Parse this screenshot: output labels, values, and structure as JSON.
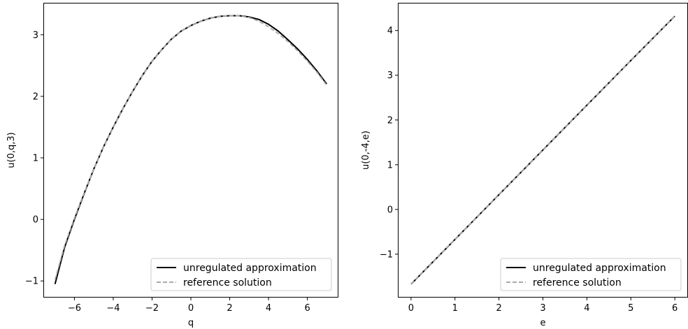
{
  "chart_data": [
    {
      "type": "line",
      "xlabel": "q",
      "ylabel": "u(0,q,3)",
      "xlim": [
        -7.6,
        7.6
      ],
      "ylim": [
        -1.27,
        3.52
      ],
      "xticks": [
        -6,
        -4,
        -2,
        0,
        2,
        4,
        6
      ],
      "yticks": [
        -1,
        0,
        1,
        2,
        3
      ],
      "legend_position": "lower-right",
      "series": [
        {
          "name": "unregulated approximation",
          "style": "solid",
          "color": "#000000",
          "x": [
            -7,
            -6.5,
            -6,
            -5.5,
            -5,
            -4.5,
            -4,
            -3.5,
            -3,
            -2.5,
            -2,
            -1.5,
            -1,
            -0.5,
            0,
            0.5,
            1,
            1.5,
            2,
            2.5,
            3,
            3.5,
            4,
            4.5,
            5,
            5.5,
            6,
            6.5,
            7
          ],
          "y": [
            -1.05,
            -0.45,
            0.0,
            0.42,
            0.82,
            1.18,
            1.5,
            1.8,
            2.08,
            2.34,
            2.57,
            2.76,
            2.93,
            3.06,
            3.15,
            3.22,
            3.27,
            3.3,
            3.31,
            3.31,
            3.29,
            3.25,
            3.17,
            3.06,
            2.92,
            2.77,
            2.6,
            2.41,
            2.2
          ]
        },
        {
          "name": "reference solution",
          "style": "dashed",
          "color": "#aaaaaa",
          "x": [
            -7,
            -6.5,
            -6,
            -5.5,
            -5,
            -4.5,
            -4,
            -3.5,
            -3,
            -2.5,
            -2,
            -1.5,
            -1,
            -0.5,
            0,
            0.5,
            1,
            1.5,
            2,
            2.5,
            3,
            3.5,
            4,
            4.5,
            5,
            5.5,
            6,
            6.5,
            7
          ],
          "y": [
            -0.98,
            -0.42,
            0.02,
            0.43,
            0.82,
            1.18,
            1.5,
            1.8,
            2.08,
            2.34,
            2.57,
            2.76,
            2.93,
            3.06,
            3.15,
            3.22,
            3.27,
            3.3,
            3.31,
            3.31,
            3.28,
            3.22,
            3.13,
            3.02,
            2.89,
            2.74,
            2.57,
            2.39,
            2.18
          ]
        }
      ]
    },
    {
      "type": "line",
      "xlabel": "e",
      "ylabel": "u(0,-4,e)",
      "xlim": [
        -0.3,
        6.3
      ],
      "ylim": [
        -1.97,
        4.62
      ],
      "xticks": [
        0,
        1,
        2,
        3,
        4,
        5,
        6
      ],
      "yticks": [
        -1,
        0,
        1,
        2,
        3,
        4
      ],
      "legend_position": "lower-right",
      "series": [
        {
          "name": "unregulated approximation",
          "style": "solid",
          "color": "#000000",
          "x": [
            0,
            1,
            2,
            3,
            4,
            5,
            6
          ],
          "y": [
            -1.67,
            -0.67,
            0.33,
            1.33,
            2.33,
            3.33,
            4.32
          ]
        },
        {
          "name": "reference solution",
          "style": "dashed",
          "color": "#aaaaaa",
          "x": [
            0,
            1,
            2,
            3,
            4,
            5,
            6
          ],
          "y": [
            -1.67,
            -0.67,
            0.33,
            1.33,
            2.33,
            3.33,
            4.32
          ]
        }
      ]
    }
  ]
}
